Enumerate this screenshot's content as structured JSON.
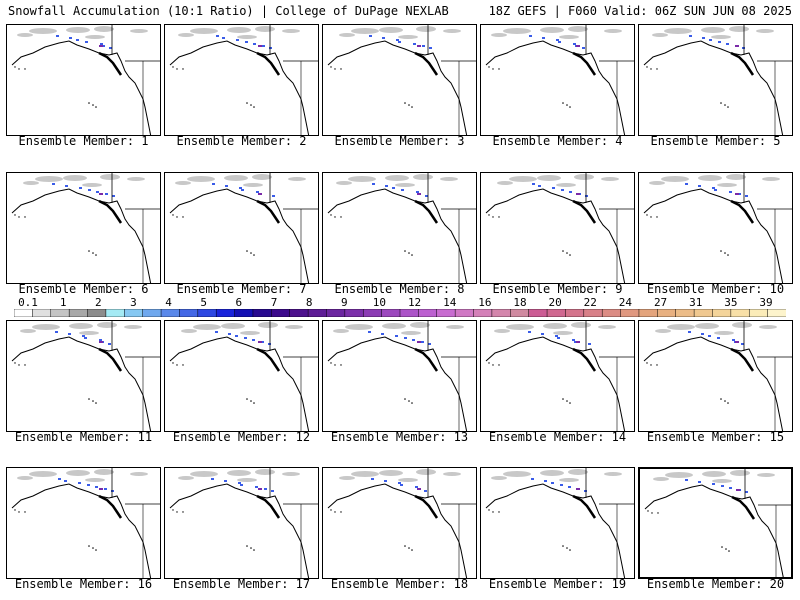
{
  "header": {
    "title_left": "Snowfall Accumulation (10:1 Ratio) | College of DuPage NEXLAB",
    "title_right": "18Z GEFS | F060 Valid: 06Z SUN JUN 08 2025"
  },
  "panels": [
    {
      "label": "Ensemble Member: 1"
    },
    {
      "label": "Ensemble Member: 2"
    },
    {
      "label": "Ensemble Member: 3"
    },
    {
      "label": "Ensemble Member: 4"
    },
    {
      "label": "Ensemble Member: 5"
    },
    {
      "label": "Ensemble Member: 6"
    },
    {
      "label": "Ensemble Member: 7"
    },
    {
      "label": "Ensemble Member: 8"
    },
    {
      "label": "Ensemble Member: 9"
    },
    {
      "label": "Ensemble Member: 10"
    },
    {
      "label": "Ensemble Member: 11"
    },
    {
      "label": "Ensemble Member: 12"
    },
    {
      "label": "Ensemble Member: 13"
    },
    {
      "label": "Ensemble Member: 14"
    },
    {
      "label": "Ensemble Member: 15"
    },
    {
      "label": "Ensemble Member: 16"
    },
    {
      "label": "Ensemble Member: 17"
    },
    {
      "label": "Ensemble Member: 18"
    },
    {
      "label": "Ensemble Member: 19"
    },
    {
      "label": "Ensemble Member: 20",
      "selected": true
    }
  ],
  "colorbar": {
    "labels": [
      "0.1",
      "1",
      "2",
      "3",
      "4",
      "5",
      "6",
      "7",
      "8",
      "9",
      "10",
      "12",
      "14",
      "16",
      "18",
      "20",
      "22",
      "24",
      "27",
      "31",
      "35",
      "39"
    ],
    "colors": [
      "#ffffff",
      "#e0e0e0",
      "#c4c4c4",
      "#a8a8a8",
      "#8c8c8c",
      "#a4eaf4",
      "#86c8f2",
      "#6fa8ee",
      "#5a88ea",
      "#4468e6",
      "#2e48e2",
      "#1a24dc",
      "#1410b4",
      "#280a90",
      "#3c0a8c",
      "#4e128e",
      "#5e1c96",
      "#6c26a0",
      "#7c30aa",
      "#8c3cb4",
      "#9c48be",
      "#ac54c8",
      "#bc60d0",
      "#c86cd0",
      "#d078c4",
      "#d480b8",
      "#d486ac",
      "#d08aa0",
      "#cc5c94",
      "#d06890",
      "#d4748c",
      "#d88088",
      "#dc8c84",
      "#e09880",
      "#e4a47c",
      "#e8b080",
      "#ecbc88",
      "#f0c890",
      "#f4d49a",
      "#f8e0a8",
      "#fbecb8",
      "#fdf4cc"
    ]
  },
  "colors": {
    "coast": "#000000",
    "snow_light": "#c8c8c8",
    "snow_blue": "#3a5ce8",
    "snow_purple": "#7a2aa8"
  }
}
